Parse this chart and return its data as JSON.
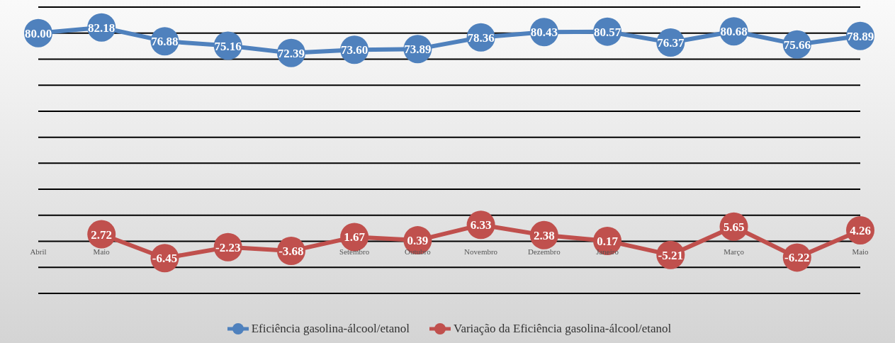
{
  "chart_data": {
    "type": "line",
    "categories": [
      "Abril",
      "Maio",
      null,
      null,
      null,
      "Setembro",
      "Outubro",
      "Novembro",
      "Dezembro",
      "Janeiro",
      null,
      "Março",
      null,
      "Maio"
    ],
    "series": [
      {
        "name": "Eficiência gasolina-álcool/etanol",
        "color": "#4f81bd",
        "values": [
          80.0,
          82.18,
          76.88,
          75.16,
          72.39,
          73.6,
          73.89,
          78.36,
          80.43,
          80.57,
          76.37,
          80.68,
          75.66,
          78.89
        ],
        "value_labels": [
          "80.00",
          "82.18",
          "76.88",
          "75.16",
          "72.39",
          "73.60",
          "73.89",
          "78.36",
          "80.43",
          "80.57",
          "76.37",
          "80.68",
          "75.66",
          "78.89"
        ]
      },
      {
        "name": "Variação da Eficiência gasolina-álcool/etanol",
        "color": "#c0504d",
        "values": [
          null,
          2.72,
          -6.45,
          -2.23,
          -3.68,
          1.67,
          0.39,
          6.33,
          2.38,
          0.17,
          -5.21,
          5.65,
          -6.22,
          4.26
        ],
        "value_labels": [
          null,
          "2.72",
          "-6.45",
          "-2.23",
          "-3.68",
          "1.67",
          "0.39",
          "6.33",
          "2.38",
          "0.17",
          "-5.21",
          "5.65",
          "-6.22",
          "4.26"
        ]
      }
    ],
    "ylim": [
      -20,
      90
    ],
    "yticks": [
      {
        "value": -20,
        "label": null
      },
      {
        "value": -10,
        "label": null
      },
      {
        "value": 0,
        "label": null
      },
      {
        "value": 10,
        "label": null
      },
      {
        "value": 20,
        "label": null
      },
      {
        "value": 30,
        "label": null
      },
      {
        "value": 40,
        "label": null
      },
      {
        "value": 50,
        "label": null
      },
      {
        "value": 60,
        "label": null
      },
      {
        "value": 70,
        "label": null
      },
      {
        "value": 80,
        "label": null
      },
      {
        "value": 90,
        "label": null
      }
    ],
    "tick_labels": "x",
    "grid": "y",
    "legend": "bottom",
    "marker": "circle",
    "line_style": "solid"
  }
}
